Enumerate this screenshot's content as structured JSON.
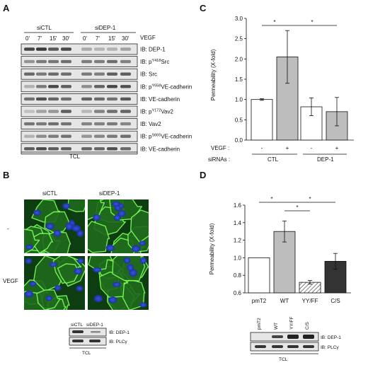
{
  "panels": {
    "a": "A",
    "b": "B",
    "c": "C",
    "d": "D"
  },
  "panel_a": {
    "groups": [
      "siCTL",
      "siDEP-1"
    ],
    "timepoints": [
      "0'",
      "7'",
      "15'",
      "30'",
      "0'",
      "7'",
      "15'",
      "30'"
    ],
    "vegf_label": "VEGF",
    "rows": [
      {
        "ib": "IB:",
        "name": "DEP-1"
      },
      {
        "ib": "IB: p",
        "sup": "Y418",
        "name": "Src"
      },
      {
        "ib": "IB:",
        "name": "Src"
      },
      {
        "ib": "IB: p",
        "sup": "Y658",
        "name": "VE-cadherin"
      },
      {
        "ib": "IB:",
        "name": "VE-cadherin"
      },
      {
        "ib": "IB: p",
        "sup": "Y172",
        "name": "Vav2"
      },
      {
        "ib": "IB:",
        "name": "Vav2"
      },
      {
        "ib": "IB: p",
        "sup": "S665",
        "name": "VE-cadherin"
      },
      {
        "ib": "IB:",
        "name": "VE-cadherin"
      }
    ],
    "footer": "TCL"
  },
  "panel_b": {
    "columns": [
      "siCTL",
      "siDEP-1"
    ],
    "rows": [
      "-",
      "VEGF"
    ],
    "blot": {
      "lanes": [
        "siCTL",
        "siDEP-1"
      ],
      "rows": [
        "IB: DEP-1",
        "IB: PLCγ"
      ],
      "footer": "TCL"
    }
  },
  "panel_c": {
    "ylabel": "Permeability (X-fold)",
    "yticks": [
      "0.0",
      "0.5",
      "1.0",
      "1.5",
      "2.0",
      "2.5",
      "3.0"
    ],
    "vegf_row_label": "VEGF :",
    "sirna_row_label": "siRNAs :",
    "vegf_marks": [
      "-",
      "+",
      "-",
      "+"
    ],
    "groups": [
      "CTL",
      "DEP-1"
    ],
    "sig": [
      "*",
      "*"
    ]
  },
  "panel_d": {
    "ylabel": "Permeability (X-fold)",
    "yticks": [
      "0.6",
      "0.8",
      "1.0",
      "1.2",
      "1.4",
      "1.6"
    ],
    "sig": [
      "*",
      "*",
      "*"
    ],
    "blot": {
      "lanes": [
        "pmT2",
        "WT",
        "YY/FF",
        "C/S"
      ],
      "rows": [
        "IB: DEP-1",
        "IB: PLCγ"
      ],
      "footer": "TCL"
    }
  },
  "chart_data": [
    {
      "type": "bar",
      "categories": [
        "CTL -",
        "CTL +",
        "DEP-1 -",
        "DEP-1 +"
      ],
      "values": [
        1.0,
        2.05,
        0.82,
        0.7
      ],
      "errors": [
        0.02,
        0.65,
        0.22,
        0.35
      ],
      "colors": [
        "#ffffff",
        "#bdbdbd",
        "#ffffff",
        "#bdbdbd"
      ],
      "ylabel": "Permeability (X-fold)",
      "ylim": [
        0,
        3.0
      ],
      "grid": false
    },
    {
      "type": "bar",
      "categories": [
        "pmT2",
        "WT",
        "YY/FF",
        "C/S"
      ],
      "values": [
        1.0,
        1.3,
        0.72,
        0.96
      ],
      "errors": [
        0.0,
        0.12,
        0.02,
        0.09
      ],
      "colors": [
        "#ffffff",
        "#bdbdbd",
        "hatched",
        "#333333"
      ],
      "ylabel": "Permeability (X-fold)",
      "ylim": [
        0.6,
        1.6
      ],
      "grid": false
    }
  ]
}
